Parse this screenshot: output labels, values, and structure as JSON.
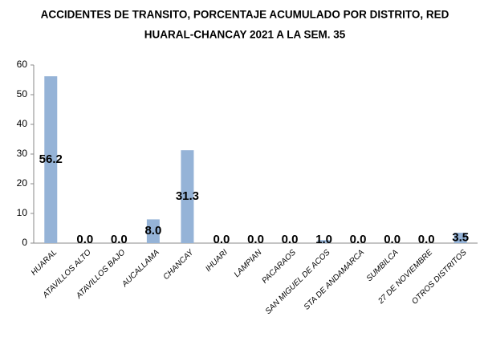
{
  "chart_data": {
    "type": "bar",
    "title": [
      "ACCIDENTES DE TRANSITO, PORCENTAJE ACUMULADO POR DISTRITO, RED",
      "HUARAL-CHANCAY 2021 A LA SEM. 35"
    ],
    "categories": [
      "HUARAL",
      "ATAVILLOS ALTO",
      "ATAVILLOS BAJO",
      "AUCALLAMA",
      "CHANCAY",
      "IHUARI",
      "LAMPIAN",
      "PACARAOS",
      "SAN MIGUEL DE ACOS",
      "STA DE ANDAMARCA",
      "SUMBILCA",
      "27 DE NOVIEMBRE",
      "OTROS DISTRITOS"
    ],
    "values": [
      56.2,
      0,
      0,
      8.0,
      31.3,
      0,
      0,
      0,
      1.0,
      0,
      0,
      0,
      3.5
    ],
    "value_labels": [
      "56.2",
      "0.0",
      "0.0",
      "8.0",
      "31.3",
      "0.0",
      "0.0",
      "0.0",
      "1.0",
      "0.0",
      "0.0",
      "0.0",
      "3.5"
    ],
    "color": "#95b3d7",
    "ylim": [
      0,
      60
    ],
    "yticks": [
      0,
      10,
      20,
      30,
      40,
      50,
      60
    ],
    "grid": false
  }
}
